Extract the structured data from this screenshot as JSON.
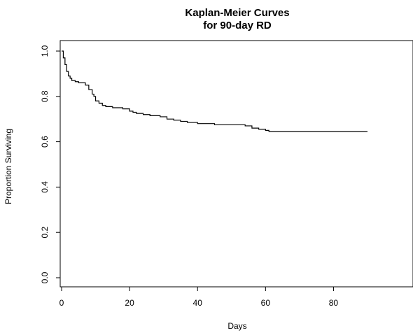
{
  "chart_data": {
    "type": "line",
    "title": [
      "Kaplan-Meier Curves",
      "for 90-day RD"
    ],
    "xlabel": "Days",
    "ylabel": "Proportion Surviving",
    "xlim": [
      0,
      90
    ],
    "ylim": [
      0,
      1
    ],
    "x_ticks": [
      "0",
      "20",
      "40",
      "60",
      "80"
    ],
    "y_ticks": [
      "0.0",
      "0.2",
      "0.4",
      "0.6",
      "0.8",
      "1.0"
    ],
    "grid": false,
    "legend": "none",
    "line_color": "#000000",
    "series": [
      {
        "step": true,
        "x": [
          0,
          0.5,
          1,
          1.5,
          2,
          2.5,
          3,
          4,
          5,
          7,
          8,
          9,
          9.5,
          10,
          11,
          12,
          13,
          15,
          18,
          20,
          21,
          22,
          24,
          26,
          29,
          31,
          33,
          35,
          37,
          40,
          45,
          48,
          54,
          56,
          58,
          60,
          61,
          90
        ],
        "y": [
          1.0,
          0.97,
          0.94,
          0.91,
          0.89,
          0.88,
          0.87,
          0.865,
          0.86,
          0.85,
          0.83,
          0.81,
          0.8,
          0.78,
          0.77,
          0.76,
          0.755,
          0.75,
          0.745,
          0.735,
          0.73,
          0.725,
          0.72,
          0.715,
          0.71,
          0.7,
          0.695,
          0.69,
          0.685,
          0.68,
          0.675,
          0.675,
          0.67,
          0.66,
          0.655,
          0.65,
          0.645,
          0.645
        ]
      }
    ]
  }
}
